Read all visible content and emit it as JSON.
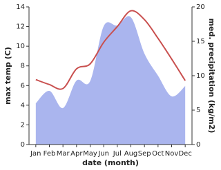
{
  "chart_data": {
    "type": "line",
    "x_label": "date (month)",
    "y_label": "max temp (C)",
    "y2_label": "med. precipitation (kg/m2)",
    "categories": [
      "Jan",
      "Feb",
      "Mar",
      "Apr",
      "May",
      "Jun",
      "Jul",
      "Aug",
      "Sep",
      "Oct",
      "Nov",
      "Dec"
    ],
    "series": [
      {
        "name": "med. precipitation",
        "type": "area",
        "axis": "y2",
        "color": "#aab5ee",
        "values": [
          6.0,
          7.8,
          5.3,
          9.3,
          9.2,
          17.2,
          17.3,
          18.5,
          13.2,
          10.0,
          7.0,
          8.5
        ]
      },
      {
        "name": "max temp",
        "type": "line",
        "color": "#c9504f",
        "values": [
          6.6,
          6.1,
          5.7,
          7.7,
          8.2,
          10.4,
          12.0,
          13.6,
          12.7,
          10.8,
          8.7,
          6.5
        ]
      }
    ],
    "ylim": [
      0,
      14
    ],
    "yticks": [
      0,
      2,
      4,
      6,
      8,
      10,
      12,
      14
    ],
    "y2lim": [
      0,
      20
    ],
    "y2ticks": [
      0,
      5,
      10,
      15,
      20
    ]
  }
}
